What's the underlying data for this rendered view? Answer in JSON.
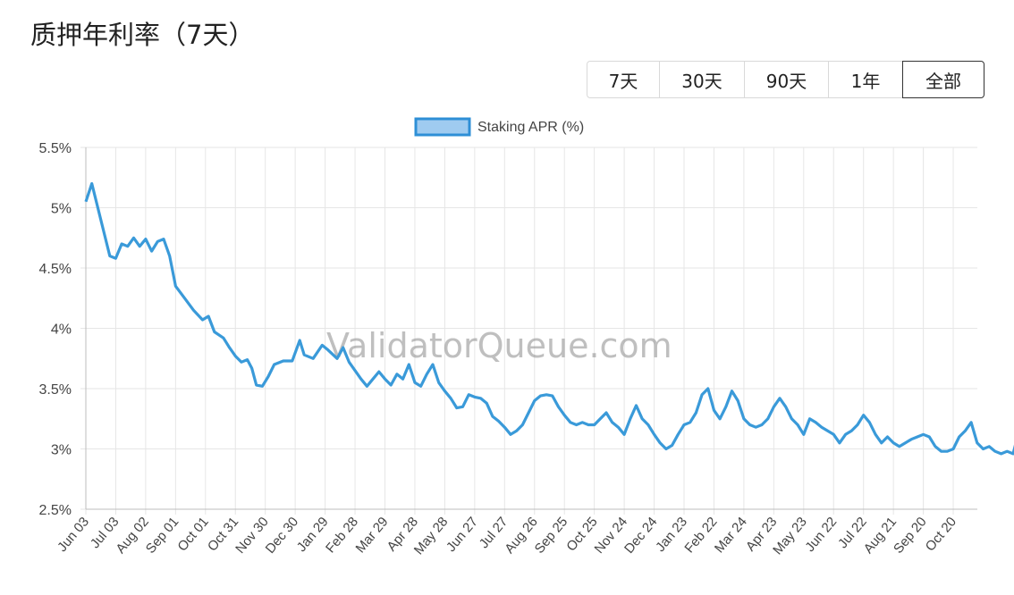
{
  "title": "质押年利率（7天）",
  "range_buttons": [
    "7天",
    "30天",
    "90天",
    "1年",
    "全部"
  ],
  "active_range": "全部",
  "watermark": "ValidatorQueue.com",
  "colors": {
    "line": "#3a9ad9",
    "legend_fill": "#9fcbf0",
    "grid": "#e6e6e6"
  },
  "chart_data": {
    "type": "line",
    "legend": "Staking APR (%)",
    "y_ticks": [
      "2.5%",
      "3%",
      "3.5%",
      "4%",
      "4.5%",
      "5%",
      "5.5%"
    ],
    "ylim": [
      2.5,
      5.5
    ],
    "x_ticks": [
      "Jun 03",
      "Jul 03",
      "Aug 02",
      "Sep 01",
      "Oct 01",
      "Oct 31",
      "Nov 30",
      "Dec 30",
      "Jan 29",
      "Feb 28",
      "Mar 29",
      "Apr 28",
      "May 28",
      "Jun 27",
      "Jul 27",
      "Aug 26",
      "Sep 25",
      "Oct 25",
      "Nov 24",
      "Dec 24",
      "Jan 23",
      "Feb 22",
      "Mar 24",
      "Apr 23",
      "May 23",
      "Jun 22",
      "Jul 22",
      "Aug 21",
      "Sep 20",
      "Oct 20"
    ],
    "grid": true,
    "legend_position": "top-center",
    "series": [
      {
        "name": "Staking APR (%)",
        "points": [
          [
            0,
            5.05
          ],
          [
            0.2,
            5.2
          ],
          [
            0.4,
            5.0
          ],
          [
            0.6,
            4.8
          ],
          [
            0.8,
            4.6
          ],
          [
            1.0,
            4.58
          ],
          [
            1.2,
            4.7
          ],
          [
            1.4,
            4.68
          ],
          [
            1.6,
            4.75
          ],
          [
            1.8,
            4.68
          ],
          [
            2.0,
            4.74
          ],
          [
            2.2,
            4.64
          ],
          [
            2.4,
            4.72
          ],
          [
            2.6,
            4.74
          ],
          [
            2.8,
            4.6
          ],
          [
            3.0,
            4.35
          ],
          [
            3.3,
            4.25
          ],
          [
            3.6,
            4.15
          ],
          [
            3.9,
            4.07
          ],
          [
            4.1,
            4.1
          ],
          [
            4.3,
            3.97
          ],
          [
            4.6,
            3.92
          ],
          [
            4.8,
            3.84
          ],
          [
            5.0,
            3.77
          ],
          [
            5.2,
            3.72
          ],
          [
            5.4,
            3.74
          ],
          [
            5.55,
            3.67
          ],
          [
            5.7,
            3.53
          ],
          [
            5.9,
            3.52
          ],
          [
            6.1,
            3.6
          ],
          [
            6.3,
            3.7
          ],
          [
            6.6,
            3.73
          ],
          [
            6.9,
            3.73
          ],
          [
            7.15,
            3.9
          ],
          [
            7.3,
            3.78
          ],
          [
            7.6,
            3.75
          ],
          [
            7.9,
            3.86
          ],
          [
            8.1,
            3.82
          ],
          [
            8.4,
            3.75
          ],
          [
            8.6,
            3.84
          ],
          [
            8.8,
            3.72
          ],
          [
            9.0,
            3.65
          ],
          [
            9.2,
            3.58
          ],
          [
            9.4,
            3.52
          ],
          [
            9.6,
            3.58
          ],
          [
            9.8,
            3.64
          ],
          [
            10.0,
            3.58
          ],
          [
            10.2,
            3.53
          ],
          [
            10.4,
            3.62
          ],
          [
            10.6,
            3.58
          ],
          [
            10.8,
            3.7
          ],
          [
            11.0,
            3.55
          ],
          [
            11.2,
            3.52
          ],
          [
            11.4,
            3.62
          ],
          [
            11.6,
            3.7
          ],
          [
            11.8,
            3.55
          ],
          [
            12.0,
            3.48
          ],
          [
            12.2,
            3.42
          ],
          [
            12.4,
            3.34
          ],
          [
            12.6,
            3.35
          ],
          [
            12.8,
            3.45
          ],
          [
            13.0,
            3.43
          ],
          [
            13.2,
            3.42
          ],
          [
            13.4,
            3.38
          ],
          [
            13.6,
            3.27
          ],
          [
            13.8,
            3.23
          ],
          [
            14.0,
            3.18
          ],
          [
            14.2,
            3.12
          ],
          [
            14.4,
            3.15
          ],
          [
            14.6,
            3.2
          ],
          [
            14.8,
            3.3
          ],
          [
            15.0,
            3.4
          ],
          [
            15.2,
            3.44
          ],
          [
            15.4,
            3.45
          ],
          [
            15.6,
            3.44
          ],
          [
            15.8,
            3.35
          ],
          [
            16.0,
            3.28
          ],
          [
            16.2,
            3.22
          ],
          [
            16.4,
            3.2
          ],
          [
            16.6,
            3.22
          ],
          [
            16.8,
            3.2
          ],
          [
            17.0,
            3.2
          ],
          [
            17.2,
            3.25
          ],
          [
            17.4,
            3.3
          ],
          [
            17.6,
            3.22
          ],
          [
            17.8,
            3.18
          ],
          [
            18.0,
            3.12
          ],
          [
            18.2,
            3.25
          ],
          [
            18.4,
            3.36
          ],
          [
            18.6,
            3.25
          ],
          [
            18.8,
            3.2
          ],
          [
            19.0,
            3.12
          ],
          [
            19.2,
            3.05
          ],
          [
            19.4,
            3.0
          ],
          [
            19.6,
            3.03
          ],
          [
            19.8,
            3.12
          ],
          [
            20.0,
            3.2
          ],
          [
            20.2,
            3.22
          ],
          [
            20.4,
            3.3
          ],
          [
            20.6,
            3.45
          ],
          [
            20.8,
            3.5
          ],
          [
            21.0,
            3.32
          ],
          [
            21.2,
            3.25
          ],
          [
            21.4,
            3.35
          ],
          [
            21.6,
            3.48
          ],
          [
            21.8,
            3.4
          ],
          [
            22.0,
            3.25
          ],
          [
            22.2,
            3.2
          ],
          [
            22.4,
            3.18
          ],
          [
            22.6,
            3.2
          ],
          [
            22.8,
            3.25
          ],
          [
            23.0,
            3.35
          ],
          [
            23.2,
            3.42
          ],
          [
            23.4,
            3.35
          ],
          [
            23.6,
            3.25
          ],
          [
            23.8,
            3.2
          ],
          [
            24.0,
            3.12
          ],
          [
            24.2,
            3.25
          ],
          [
            24.4,
            3.22
          ],
          [
            24.6,
            3.18
          ],
          [
            24.8,
            3.15
          ],
          [
            25.0,
            3.12
          ],
          [
            25.2,
            3.05
          ],
          [
            25.4,
            3.12
          ],
          [
            25.6,
            3.15
          ],
          [
            25.8,
            3.2
          ],
          [
            26.0,
            3.28
          ],
          [
            26.2,
            3.22
          ],
          [
            26.4,
            3.12
          ],
          [
            26.6,
            3.05
          ],
          [
            26.8,
            3.1
          ],
          [
            27.0,
            3.05
          ],
          [
            27.2,
            3.02
          ],
          [
            27.4,
            3.05
          ],
          [
            27.6,
            3.08
          ],
          [
            27.8,
            3.1
          ],
          [
            28.0,
            3.12
          ],
          [
            28.2,
            3.1
          ],
          [
            28.4,
            3.02
          ],
          [
            28.6,
            2.98
          ],
          [
            28.8,
            2.98
          ],
          [
            29.0,
            3.0
          ],
          [
            29.2,
            3.1
          ],
          [
            29.4,
            3.15
          ],
          [
            29.6,
            3.22
          ],
          [
            29.8,
            3.05
          ],
          [
            30.0,
            3.0
          ],
          [
            30.2,
            3.02
          ],
          [
            30.4,
            2.98
          ],
          [
            30.6,
            2.96
          ],
          [
            30.8,
            2.98
          ],
          [
            31.0,
            2.96
          ],
          [
            31.2,
            3.15
          ],
          [
            31.4,
            3.0
          ],
          [
            31.6,
            2.95
          ],
          [
            31.8,
            3.05
          ],
          [
            32.0,
            3.05
          ],
          [
            32.2,
            3.06
          ],
          [
            32.4,
            3.07
          ],
          [
            32.6,
            3.05
          ],
          [
            32.8,
            3.02
          ],
          [
            33.0,
            3.08
          ],
          [
            33.2,
            3.0
          ],
          [
            33.4,
            2.98
          ],
          [
            33.6,
            2.96
          ],
          [
            33.8,
            3.0
          ],
          [
            34.0,
            2.98
          ],
          [
            34.2,
            3.02
          ],
          [
            34.4,
            3.05
          ],
          [
            34.6,
            3.03
          ],
          [
            34.8,
            3.02
          ],
          [
            35.0,
            2.95
          ],
          [
            35.2,
            2.9
          ],
          [
            35.4,
            2.9
          ],
          [
            35.6,
            2.92
          ],
          [
            35.8,
            2.88
          ],
          [
            36.0,
            2.93
          ],
          [
            36.2,
            2.95
          ],
          [
            36.4,
            2.92
          ],
          [
            36.6,
            2.94
          ],
          [
            36.8,
            2.88
          ],
          [
            37.0,
            2.83
          ],
          [
            37.2,
            2.86
          ],
          [
            37.4,
            2.86
          ],
          [
            37.6,
            2.86
          ],
          [
            37.8,
            2.87
          ],
          [
            38.0,
            2.85
          ],
          [
            38.2,
            2.88
          ],
          [
            38.4,
            3.05
          ],
          [
            38.6,
            3.06
          ],
          [
            38.8,
            2.82
          ],
          [
            39.0,
            2.86
          ],
          [
            39.2,
            2.88
          ],
          [
            39.4,
            2.9
          ],
          [
            39.6,
            2.88
          ],
          [
            39.8,
            2.93
          ],
          [
            40.0,
            2.92
          ],
          [
            40.2,
            2.93
          ],
          [
            40.4,
            2.88
          ]
        ]
      }
    ]
  }
}
